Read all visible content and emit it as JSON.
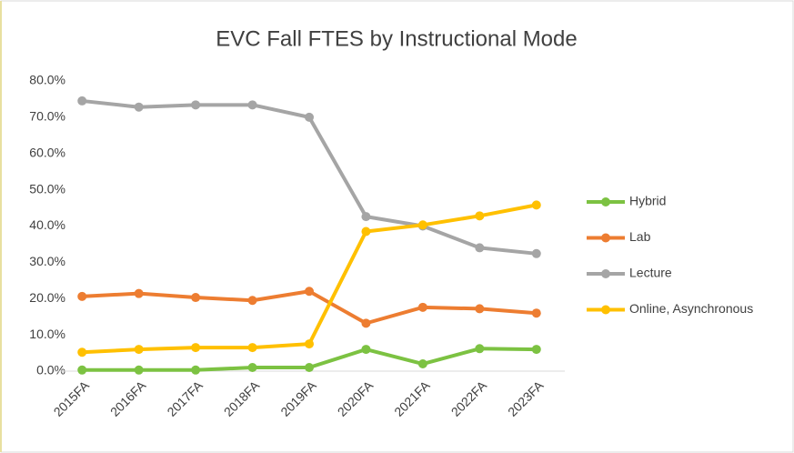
{
  "chart_data": {
    "type": "line",
    "title": "EVC Fall FTES by Instructional Mode",
    "categories": [
      "2015FA",
      "2016FA",
      "2017FA",
      "2018FA",
      "2019FA",
      "2020FA",
      "2021FA",
      "2022FA",
      "2023FA"
    ],
    "series": [
      {
        "name": "Hybrid",
        "color": "#7cc242",
        "values": [
          0.3,
          0.3,
          0.3,
          1.0,
          1.0,
          6.0,
          2.0,
          6.2,
          6.0
        ]
      },
      {
        "name": "Lab",
        "color": "#ed7d31",
        "values": [
          20.6,
          21.4,
          20.3,
          19.5,
          22.0,
          13.2,
          17.6,
          17.2,
          16.0
        ]
      },
      {
        "name": "Lecture",
        "color": "#a5a5a5",
        "values": [
          74.5,
          72.8,
          73.4,
          73.4,
          70.0,
          42.6,
          40.0,
          34.0,
          32.4
        ]
      },
      {
        "name": "Online, Asynchronous",
        "color": "#ffc000",
        "values": [
          5.2,
          6.0,
          6.5,
          6.5,
          7.5,
          38.5,
          40.3,
          42.8,
          45.8
        ]
      }
    ],
    "ylim": [
      0,
      80
    ],
    "yticks": [
      {
        "value": 0,
        "label": "0.0%"
      },
      {
        "value": 10,
        "label": "10.0%"
      },
      {
        "value": 20,
        "label": "20.0%"
      },
      {
        "value": 30,
        "label": "30.0%"
      },
      {
        "value": 40,
        "label": "40.0%"
      },
      {
        "value": 50,
        "label": "50.0%"
      },
      {
        "value": 60,
        "label": "60.0%"
      },
      {
        "value": 70,
        "label": "70.0%"
      },
      {
        "value": 80,
        "label": "80.0%"
      }
    ],
    "grid": false,
    "legend": "right"
  }
}
